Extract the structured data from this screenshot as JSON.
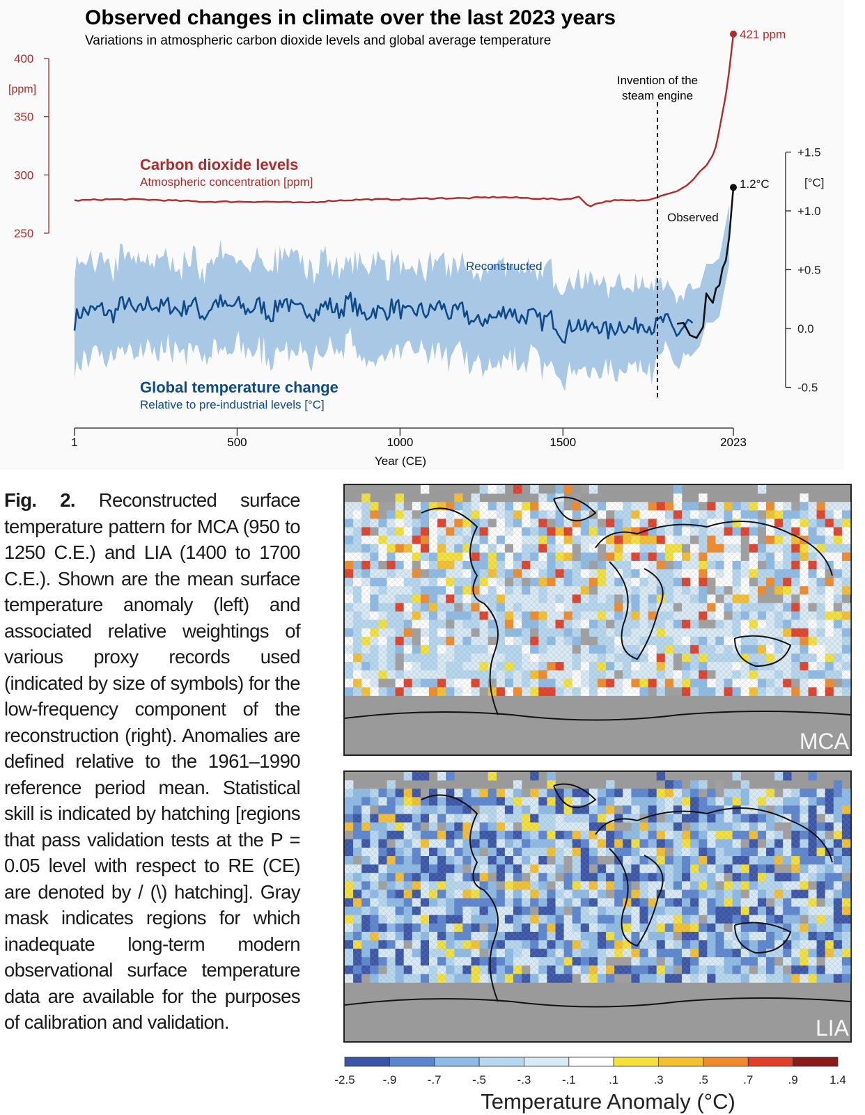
{
  "header": {
    "title": "Observed changes in climate over the last 2023 years",
    "subtitle": "Variations in atmospheric carbon dioxide levels and global average temperature"
  },
  "co2": {
    "label": "Carbon dioxide levels",
    "sublabel": "Atmospheric concentration [ppm]",
    "end_label": "421 ppm",
    "color": "#b22a2a"
  },
  "temp": {
    "label": "Global temperature change",
    "sublabel": "Relative to pre-industrial levels [°C]",
    "end_label": "1.2°C",
    "reconstructed_label": "Reconstructed",
    "observed_label": "Observed",
    "color": "#0d4a8a",
    "band_color": "#a9c8e6"
  },
  "annotation": {
    "line1": "Invention of the",
    "line2": "steam engine",
    "year": 1769
  },
  "chart_data": {
    "type": "line",
    "xlabel": "Year (CE)",
    "xlim": [
      1,
      2023
    ],
    "x_ticks": [
      "1",
      "500",
      "1000",
      "1500",
      "2023"
    ],
    "x_tick_values": [
      1,
      500,
      1000,
      1500,
      2023
    ],
    "left_axis": {
      "unit": "[ppm]",
      "ticks": [
        "400",
        "350",
        "300",
        "250"
      ],
      "tick_values": [
        400,
        350,
        300,
        250
      ],
      "ylim": [
        250,
        420
      ]
    },
    "right_axis": {
      "unit": "[°C]",
      "ticks": [
        "+1.5",
        "+1.0",
        "+0.5",
        "0.0",
        "-0.5"
      ],
      "tick_values": [
        1.5,
        1.0,
        0.5,
        0.0,
        -0.5
      ],
      "ylim": [
        -0.5,
        1.5
      ]
    },
    "series": [
      {
        "name": "Carbon dioxide levels",
        "x": [
          1,
          100,
          200,
          300,
          400,
          500,
          600,
          700,
          800,
          900,
          1000,
          1100,
          1200,
          1300,
          1400,
          1500,
          1550,
          1580,
          1610,
          1650,
          1700,
          1750,
          1800,
          1850,
          1880,
          1900,
          1920,
          1940,
          1960,
          1970,
          1980,
          1990,
          2000,
          2010,
          2023
        ],
        "y": [
          278,
          279,
          279,
          278,
          277,
          277,
          277,
          276,
          278,
          279,
          279,
          280,
          280,
          281,
          280,
          279,
          281,
          273,
          276,
          278,
          278,
          278,
          282,
          286,
          291,
          296,
          303,
          308,
          317,
          325,
          339,
          354,
          369,
          389,
          421
        ]
      },
      {
        "name": "Global temperature change",
        "x": [
          1,
          50,
          100,
          150,
          200,
          250,
          300,
          350,
          400,
          450,
          500,
          550,
          600,
          650,
          700,
          750,
          800,
          850,
          900,
          950,
          1000,
          1050,
          1100,
          1150,
          1200,
          1250,
          1300,
          1350,
          1400,
          1450,
          1500,
          1550,
          1600,
          1650,
          1700,
          1750,
          1800,
          1850,
          1900
        ],
        "y": [
          0.06,
          0.18,
          0.12,
          0.2,
          0.15,
          0.22,
          0.16,
          0.2,
          0.14,
          0.22,
          0.17,
          0.19,
          0.14,
          0.23,
          0.13,
          0.18,
          0.17,
          0.21,
          0.11,
          0.17,
          0.16,
          0.12,
          0.18,
          0.15,
          0.12,
          0.04,
          0.13,
          0.14,
          0.08,
          0.09,
          -0.02,
          0.03,
          0.0,
          0.0,
          0.02,
          0.03,
          0.05,
          -0.01,
          0.02
        ],
        "band_halfwidth": 0.4
      },
      {
        "name": "Observed",
        "x": [
          1850,
          1870,
          1890,
          1910,
          1930,
          1940,
          1950,
          1960,
          1970,
          1980,
          1990,
          2000,
          2010,
          2023
        ],
        "y": [
          0.04,
          0.01,
          -0.04,
          -0.12,
          0.05,
          0.33,
          0.27,
          0.19,
          0.31,
          0.35,
          0.51,
          0.6,
          0.77,
          1.2
        ]
      }
    ]
  },
  "caption": {
    "fig_label": "Fig. 2.",
    "text": "Reconstructed surface temperature pattern for MCA (950 to 1250 C.E.) and LIA (1400 to 1700 C.E.). Shown are the mean surface temperature anomaly (left) and associated relative weightings of various proxy records used (indicated by size of symbols) for the low-frequency component of the reconstruction (right). Anomalies are defined relative to the 1961–1990 reference period mean. Statistical skill is indicated by hatching [regions that pass validation tests at the P = 0.05 level with respect to RE (CE) are denoted by / (\\) hatching]. Gray mask indicates regions for which inadequate long-term modern observational surface temperature data are available for the purposes of calibration and validation."
  },
  "maps": {
    "mca_label": "MCA",
    "lia_label": "LIA",
    "mask_color": "#9a9a9a"
  },
  "colorbar": {
    "title": "Temperature Anomaly (°C)",
    "ticks": [
      "-2.5",
      "-.9",
      "-.7",
      "-.5",
      "-.3",
      "-.1",
      ".1",
      ".3",
      ".5",
      ".7",
      ".9",
      "1.4"
    ],
    "colors": [
      "#3a55a8",
      "#5b85cf",
      "#8dbbe6",
      "#b5d7ef",
      "#d8eaf6",
      "#ffffff",
      "#f4e23a",
      "#f4c030",
      "#f08a2a",
      "#e0402a",
      "#8b1a1a"
    ]
  }
}
